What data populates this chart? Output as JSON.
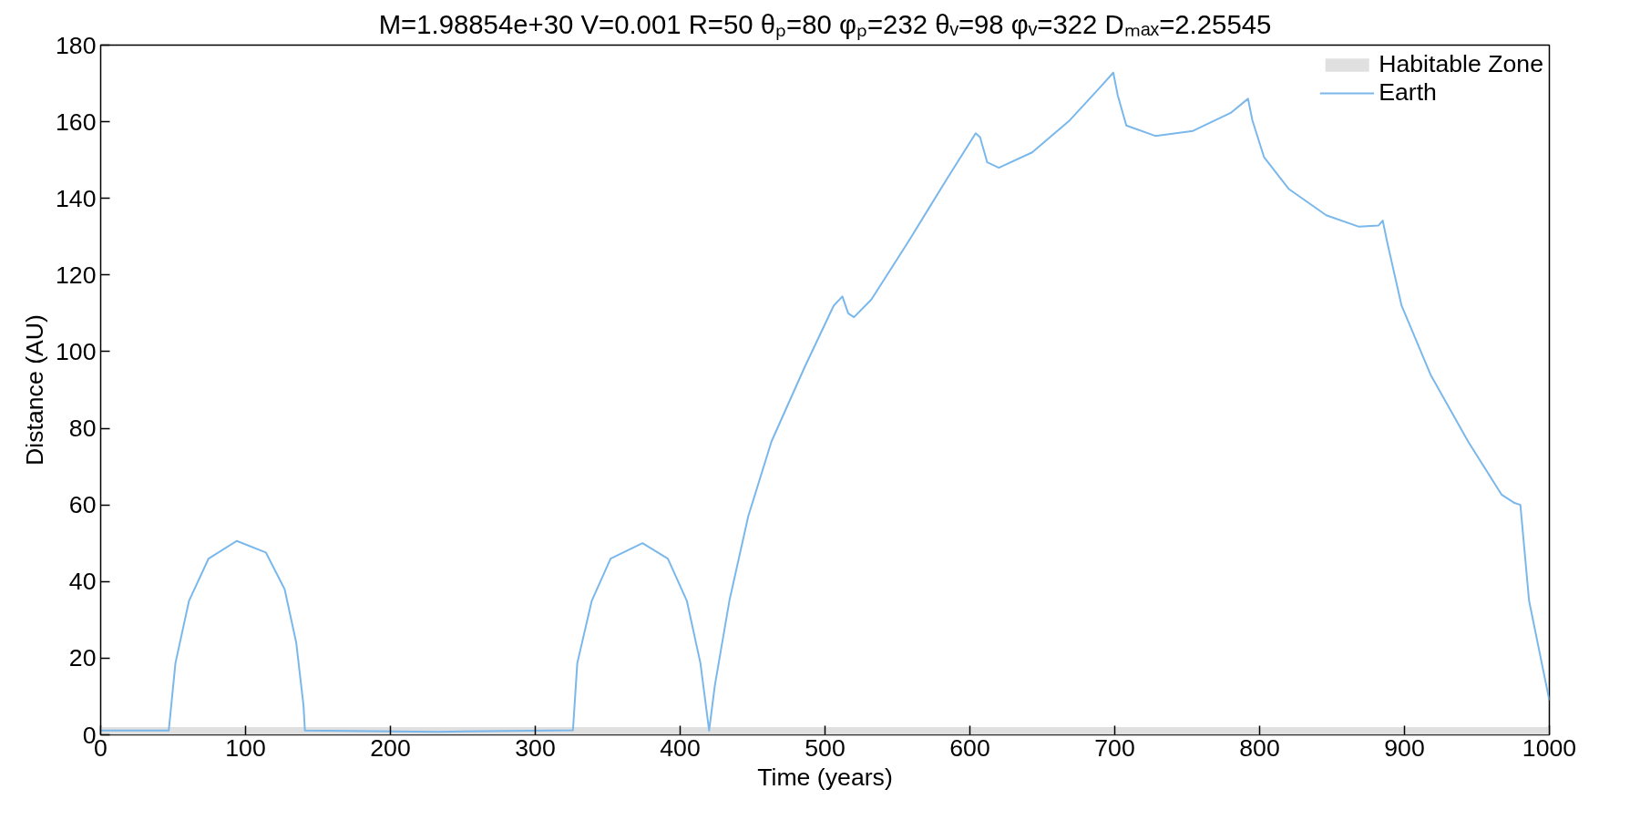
{
  "chart_data": {
    "type": "line",
    "title": "M=1.98854e+30 V=0.001 R=50 θₚ=80 φₚ=232 θᵥ=98 φᵥ=322 Dₘₐₓ=2.25545",
    "xlabel": "Time (years)",
    "ylabel": "Distance (AU)",
    "xlim": [
      0,
      1000
    ],
    "ylim": [
      0,
      180
    ],
    "xticks": [
      0,
      100,
      200,
      300,
      400,
      500,
      600,
      700,
      800,
      900,
      1000
    ],
    "yticks": [
      0,
      20,
      40,
      60,
      80,
      100,
      120,
      140,
      160,
      180
    ],
    "grid": false,
    "legend": "top right",
    "bands": [
      {
        "axis": "y",
        "from": 0,
        "to": 2,
        "label": "Habitable Zone",
        "color": "#e0e0e0"
      }
    ],
    "series": [
      {
        "name": "Earth",
        "color": "#7ab8ec",
        "x": [
          0,
          47,
          51.6,
          61,
          74.5,
          94,
          114,
          127,
          135,
          140,
          141,
          233,
          326,
          329,
          339,
          352,
          374,
          391.5,
          404.6,
          414,
          420,
          424,
          434,
          447,
          463,
          486,
          506,
          512,
          516,
          520,
          532,
          558,
          584,
          604,
          607,
          612,
          620,
          643,
          669,
          689,
          699,
          702,
          708,
          728,
          754,
          780,
          792,
          795,
          803,
          820,
          846,
          868.6,
          882,
          885,
          888,
          898,
          918,
          944,
          967,
          976,
          980,
          986,
          1000
        ],
        "values": [
          1.1,
          1.1,
          18.7,
          35,
          46,
          50.6,
          47.6,
          38,
          24,
          7.7,
          1.1,
          0.8,
          1.2,
          18.7,
          35,
          46,
          50,
          46,
          35,
          18.7,
          1.1,
          13,
          35,
          57,
          76.5,
          96,
          112,
          114.4,
          110,
          109,
          113.6,
          129,
          145,
          157,
          156,
          149.4,
          148,
          152,
          160.4,
          168.6,
          172.8,
          167,
          159,
          156.3,
          157.6,
          162.3,
          166,
          160.4,
          150.8,
          142.5,
          135.6,
          132.6,
          132.9,
          134.2,
          128.7,
          112,
          94,
          76.5,
          62.7,
          60.5,
          60,
          35,
          9
        ]
      }
    ]
  }
}
